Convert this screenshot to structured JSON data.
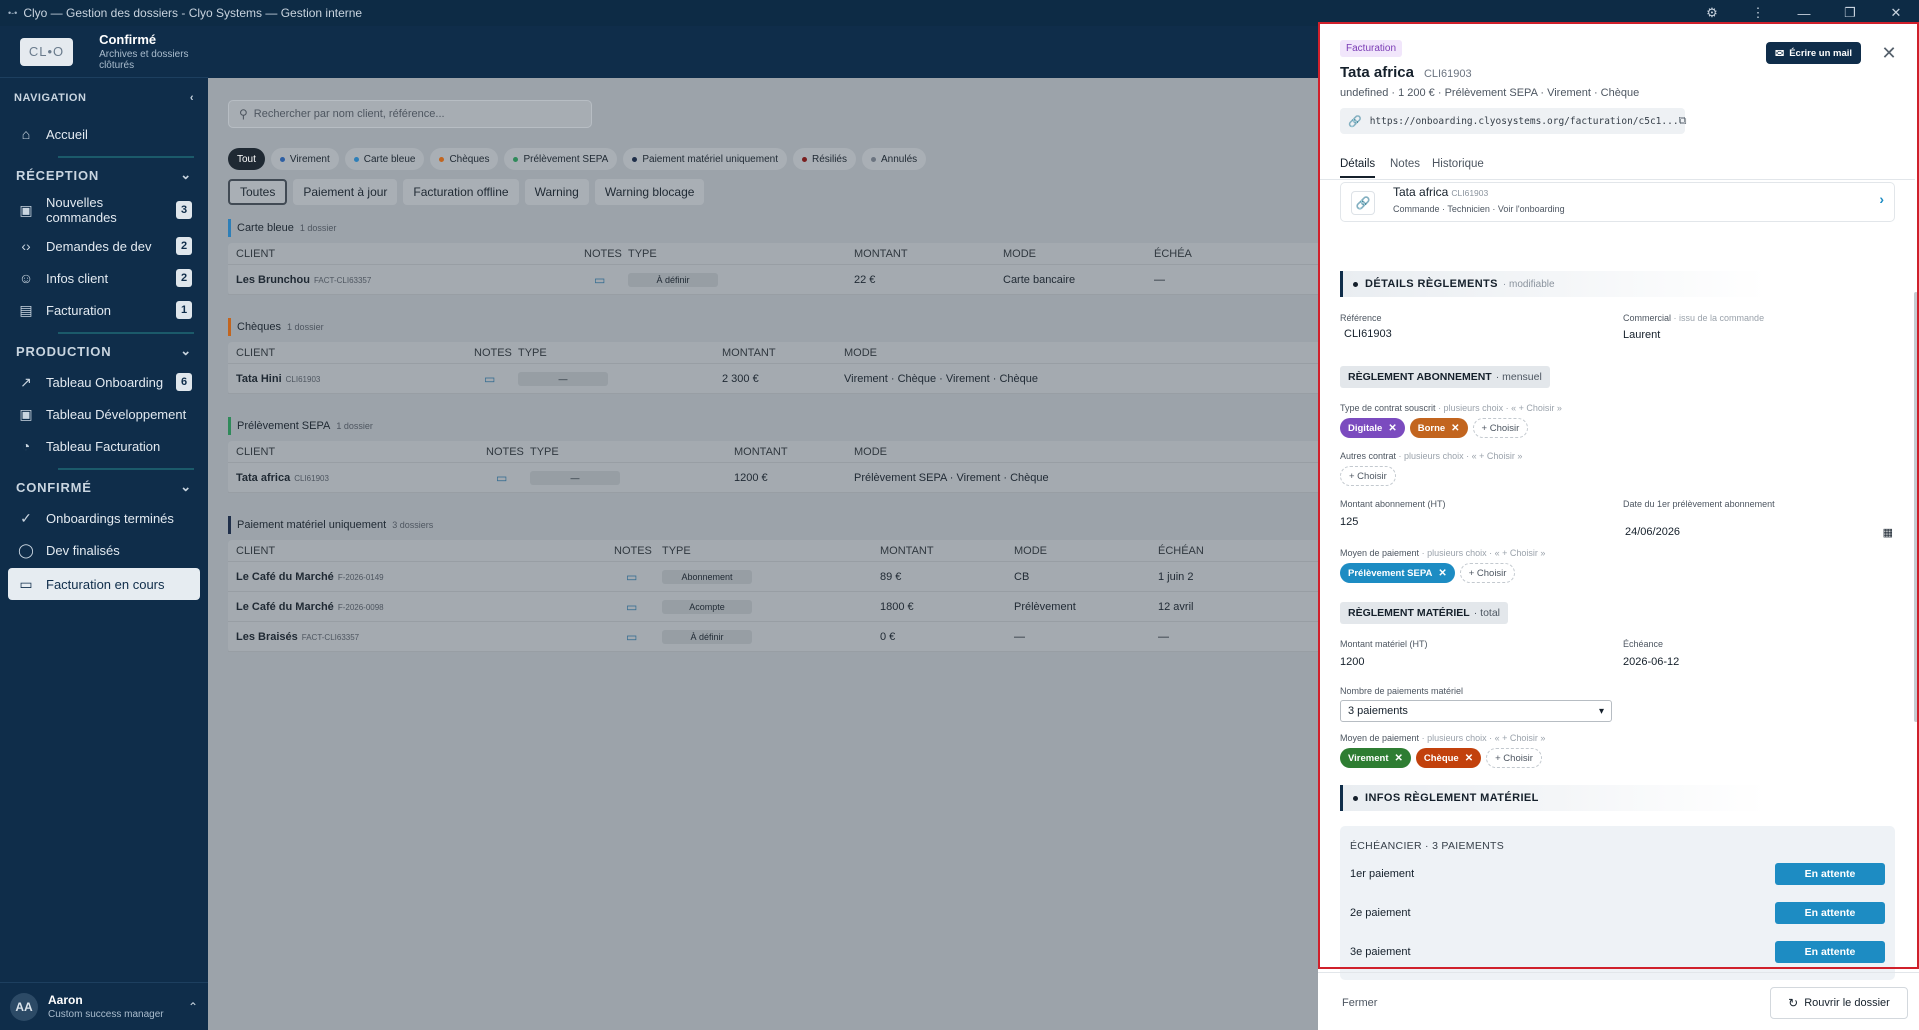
{
  "window": {
    "logo_glyph": "•-•",
    "title": "Clyo — Gestion des dossiers - Clyo Systems — Gestion interne",
    "controls": [
      "⚙",
      "⋮",
      "—",
      "❐",
      "✕"
    ]
  },
  "brand": {
    "logo": "CL•O",
    "title": "Confirmé",
    "subtitle": "Archives et dossiers clôturés"
  },
  "nav": {
    "heading": "NAVIGATION",
    "home": "Accueil",
    "reception": {
      "heading": "RÉCEPTION",
      "items": [
        {
          "label": "Nouvelles commandes",
          "badge": "3",
          "icon": "inbox-icon"
        },
        {
          "label": "Demandes de dev",
          "badge": "2",
          "icon": "code-icon"
        },
        {
          "label": "Infos client",
          "badge": "2",
          "icon": "user-icon"
        },
        {
          "label": "Facturation",
          "badge": "1",
          "icon": "file-icon"
        }
      ]
    },
    "production": {
      "heading": "PRODUCTION",
      "items": [
        {
          "label": "Tableau Onboarding",
          "badge": "6"
        },
        {
          "label": "Tableau Développement"
        },
        {
          "label": "Tableau Facturation"
        }
      ]
    },
    "confirme": {
      "heading": "CONFIRMÉ",
      "items": [
        {
          "label": "Onboardings terminés"
        },
        {
          "label": "Dev finalisés"
        },
        {
          "label": "Facturation en cours"
        }
      ]
    }
  },
  "user": {
    "initials": "AA",
    "name": "Aaron",
    "role": "Custom success manager"
  },
  "main": {
    "search_placeholder": "Rechercher par nom client, référence...",
    "filters": [
      {
        "label": "Tout",
        "dot": ""
      },
      {
        "label": "Virement",
        "dot": "#2e5fa3"
      },
      {
        "label": "Carte bleue",
        "dot": "#2e7fb8"
      },
      {
        "label": "Chèques",
        "dot": "#c2651f"
      },
      {
        "label": "Prélèvement SEPA",
        "dot": "#2f8a5a"
      },
      {
        "label": "Paiement matériel uniquement",
        "dot": "#1f2f4a"
      },
      {
        "label": "Résiliés",
        "dot": "#7a1f1f"
      },
      {
        "label": "Annulés",
        "dot": "#6b7480"
      }
    ],
    "subtabs": [
      "Toutes",
      "Paiement à jour",
      "Facturation offline",
      "Warning",
      "Warning blocage"
    ],
    "groups": [
      {
        "title": "Carte bleue",
        "count": "1 dossier",
        "headers": [
          "CLIENT",
          "NOTES",
          "TYPE",
          "MONTANT",
          "MODE",
          "ÉCHÉA"
        ],
        "rows": [
          {
            "client": "Les Brunchou",
            "ref": "FACT-CLI63357",
            "type": "À définir",
            "amount": "22 €",
            "mode": "Carte bancaire",
            "due": "—"
          }
        ]
      },
      {
        "title": "Chèques",
        "count": "1 dossier",
        "headers": [
          "CLIENT",
          "NOTES",
          "TYPE",
          "MONTANT",
          "MODE"
        ],
        "rows": [
          {
            "client": "Tata Hini",
            "ref": "CLI61903",
            "type": "—",
            "amount": "2 300 €",
            "mode": "Virement · Chèque · Virement · Chèque"
          }
        ]
      },
      {
        "title": "Prélèvement SEPA",
        "count": "1 dossier",
        "headers": [
          "CLIENT",
          "NOTES",
          "TYPE",
          "MONTANT",
          "MODE"
        ],
        "rows": [
          {
            "client": "Tata africa",
            "ref": "CLI61903",
            "type": "—",
            "amount": "1200 €",
            "mode": "Prélèvement SEPA · Virement · Chèque"
          }
        ]
      },
      {
        "title": "Paiement matériel uniquement",
        "count": "3 dossiers",
        "headers": [
          "CLIENT",
          "NOTES",
          "TYPE",
          "MONTANT",
          "MODE",
          "ÉCHÉAN"
        ],
        "rows": [
          {
            "client": "Le Café du Marché",
            "ref": "F-2026-0149",
            "type": "Abonnement",
            "amount": "89 €",
            "mode": "CB",
            "due": "1 juin 2"
          },
          {
            "client": "Le Café du Marché",
            "ref": "F-2026-0098",
            "type": "Acompte",
            "amount": "1800 €",
            "mode": "Prélèvement",
            "due": "12 avril"
          },
          {
            "client": "Les Braisés",
            "ref": "FACT-CLI63357",
            "type": "À définir",
            "amount": "0 €",
            "mode": "—",
            "due": "—"
          }
        ]
      }
    ]
  },
  "panel": {
    "tag": "Facturation",
    "title": "Tata africa",
    "title_ref": "CLI61903",
    "subtitle": "undefined · 1 200 € · Prélèvement SEPA · Virement · Chèque",
    "link": "https://onboarding.clyosystems.org/facturation/c5c1...",
    "mail_button": "Écrire un mail",
    "tabs": [
      "Détails",
      "Notes",
      "Historique"
    ],
    "card": {
      "name": "Tata africa",
      "ref": "CLI61903",
      "sub": "Commande · Technicien · Voir l'onboarding"
    },
    "details": {
      "heading": "DÉTAILS RÈGLEMENTS",
      "heading_note": "· modifiable",
      "ref_label": "Référence",
      "ref_value": "CLI61903",
      "commercial_label": "Commercial",
      "commercial_hint": "· issu de la commande",
      "commercial_value": "Laurent"
    },
    "abonnement": {
      "heading": "RÈGLEMENT ABONNEMENT",
      "heading_note": "· mensuel",
      "contract_label": "Type de contrat souscrit",
      "contract_hint": "· plusieurs choix · « + Choisir »",
      "contract_tags": [
        {
          "label": "Digitale",
          "color": "#7b4bbf"
        },
        {
          "label": "Borne",
          "color": "#c2651f"
        }
      ],
      "other_label": "Autres contrat",
      "other_hint": "· plusieurs choix · « + Choisir »",
      "amount_label": "Montant abonnement (HT)",
      "amount_value": "125",
      "date_label": "Date du 1er prélèvement abonnement",
      "date_value": "24/06/2026",
      "payment_label": "Moyen de paiement",
      "payment_hint": "· plusieurs choix · « + Choisir »",
      "payment_tags": [
        {
          "label": "Prélèvement SEPA",
          "color": "#1d8cc3"
        }
      ],
      "add_label": "+ Choisir"
    },
    "materiel": {
      "heading": "RÈGLEMENT MATÉRIEL",
      "heading_note": "· total",
      "amount_label": "Montant matériel (HT)",
      "amount_value": "1200",
      "due_label": "Échéance",
      "due_value": "2026-06-12",
      "count_label": "Nombre de paiements matériel",
      "count_value": "3 paiements",
      "payment_label": "Moyen de paiement",
      "payment_hint": "· plusieurs choix · « + Choisir »",
      "payment_tags": [
        {
          "label": "Virement",
          "color": "#2e7d32"
        },
        {
          "label": "Chèque",
          "color": "#c2410c"
        }
      ],
      "add_label": "+ Choisir"
    },
    "infos": {
      "heading": "INFOS RÈGLEMENT MATÉRIEL",
      "schedule_title": "ÉCHÉANCIER · 3 PAIEMENTS",
      "payments": [
        {
          "label": "1er paiement",
          "status": "En attente"
        },
        {
          "label": "2e paiement",
          "status": "En attente"
        },
        {
          "label": "3e paiement",
          "status": "En attente"
        }
      ]
    },
    "footer": {
      "close": "Fermer",
      "reopen": "Rouvrir le dossier"
    }
  }
}
